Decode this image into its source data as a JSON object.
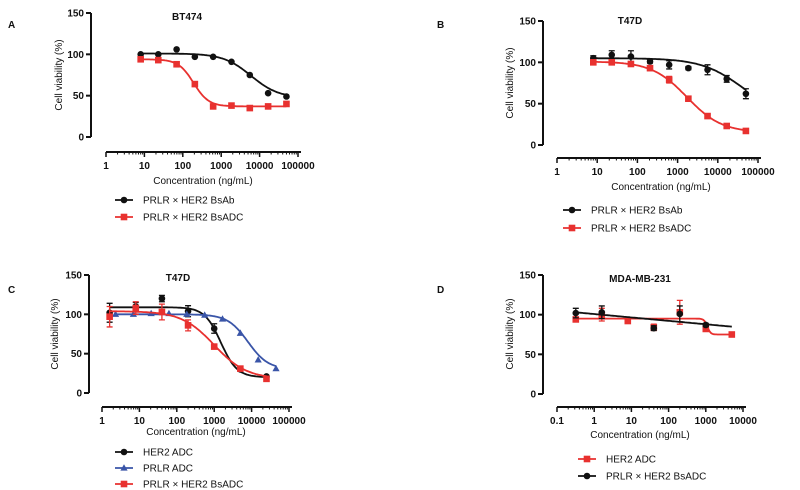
{
  "chart_data": [
    {
      "type": "scatter",
      "panel_label": "A",
      "title": "BT474",
      "xlabel": "Concentration (ng/mL)",
      "ylabel": "Cell viability (%)",
      "xscale": "log",
      "xlim": [
        1,
        100000
      ],
      "ylim": [
        0,
        150
      ],
      "xticks": [
        "1",
        "10",
        "100",
        "1000",
        "10000",
        "100000"
      ],
      "yticks": [
        "0",
        "50",
        "100",
        "150"
      ],
      "grid": false,
      "legend_position": "bottom",
      "series": [
        {
          "name": "PRLR × HER2 BsAb",
          "color": "#111111",
          "marker": "circle",
          "x": [
            8,
            23,
            69,
            206,
            617,
            1852,
            5556,
            16667,
            50000
          ],
          "y": [
            100,
            100,
            106,
            97,
            97,
            91,
            75,
            53,
            49
          ],
          "fit": {
            "top": 101,
            "bottom": 47,
            "ec50": 6000,
            "hill": 1.2
          }
        },
        {
          "name": "PRLR × HER2 BsADC",
          "color": "#e8312f",
          "marker": "square",
          "x": [
            8,
            23,
            69,
            206,
            617,
            1852,
            5556,
            16667,
            50000
          ],
          "y": [
            94,
            93,
            88,
            64,
            37,
            38,
            35,
            37,
            40
          ],
          "fit": {
            "top": 94,
            "bottom": 37,
            "ec50": 190,
            "hill": 2.2
          }
        }
      ]
    },
    {
      "type": "scatter",
      "panel_label": "B",
      "title": "T47D",
      "xlabel": "Concentration (ng/mL)",
      "ylabel": "Cell viability (%)",
      "xscale": "log",
      "xlim": [
        1,
        100000
      ],
      "ylim": [
        0,
        150
      ],
      "xticks": [
        "1",
        "10",
        "100",
        "1000",
        "10000",
        "100000"
      ],
      "yticks": [
        "0",
        "50",
        "100",
        "150"
      ],
      "grid": false,
      "legend_position": "bottom",
      "series": [
        {
          "name": "PRLR × HER2 BsAb",
          "color": "#111111",
          "marker": "circle",
          "x": [
            8,
            23,
            69,
            206,
            617,
            1852,
            5556,
            16667,
            50000
          ],
          "y": [
            105,
            109,
            107,
            101,
            97,
            93,
            91,
            80,
            62
          ],
          "err": [
            3,
            5,
            7,
            2,
            5,
            2,
            6,
            4,
            6
          ],
          "fit": {
            "top": 105,
            "bottom": 35,
            "ec50": 40000,
            "hill": 0.85
          }
        },
        {
          "name": "PRLR × HER2 BsADC",
          "color": "#e8312f",
          "marker": "square",
          "x": [
            8,
            23,
            69,
            206,
            617,
            1852,
            5556,
            16667,
            50000
          ],
          "y": [
            100,
            100,
            98,
            93,
            79,
            56,
            35,
            23,
            17
          ],
          "err": [
            2,
            2,
            2,
            3,
            4,
            2,
            2,
            1,
            1
          ],
          "fit": {
            "top": 101,
            "bottom": 15,
            "ec50": 1700,
            "hill": 1.0
          }
        }
      ]
    },
    {
      "type": "scatter",
      "panel_label": "C",
      "title": "T47D",
      "xlabel": "Concentration (ng/mL)",
      "ylabel": "Cell viability (%)",
      "xscale": "log",
      "xlim": [
        1,
        100000
      ],
      "ylim": [
        0,
        150
      ],
      "xticks": [
        "1",
        "10",
        "100",
        "1000",
        "10000",
        "100000"
      ],
      "yticks": [
        "0",
        "50",
        "100",
        "150"
      ],
      "grid": false,
      "legend_position": "bottom",
      "series": [
        {
          "name": "HER2 ADC",
          "color": "#111111",
          "marker": "circle",
          "x": [
            1.6,
            8,
            40,
            200,
            1000,
            5000,
            25000
          ],
          "y": [
            102,
            110,
            120,
            104,
            82,
            30,
            21
          ],
          "err": [
            12,
            5,
            4,
            7,
            6,
            2,
            1
          ],
          "fit": {
            "top": 109,
            "bottom": 20,
            "ec50": 1500,
            "hill": 2.0
          }
        },
        {
          "name": "PRLR ADC",
          "color": "#3a55a8",
          "marker": "triangle",
          "x": [
            2.3,
            6.9,
            20.6,
            61.7,
            185,
            556,
            1667,
            5000,
            15000,
            45000
          ],
          "y": [
            100,
            100,
            101,
            101,
            100,
            99,
            94,
            76,
            42,
            31
          ],
          "fit": {
            "top": 100,
            "bottom": 30,
            "ec50": 8000,
            "hill": 1.6
          }
        },
        {
          "name": "PRLR × HER2 BsADC",
          "color": "#e8312f",
          "marker": "square",
          "x": [
            1.6,
            8,
            40,
            200,
            1000,
            5000,
            25000
          ],
          "y": [
            97,
            108,
            103,
            86,
            59,
            31,
            18
          ],
          "err": [
            13,
            8,
            10,
            7,
            3,
            2,
            1
          ],
          "fit": {
            "top": 104,
            "bottom": 18,
            "ec50": 1000,
            "hill": 1.0
          }
        }
      ]
    },
    {
      "type": "scatter",
      "panel_label": "D",
      "title": "MDA-MB-231",
      "xlabel": "Concentration (ng/mL)",
      "ylabel": "Cell viability (%)",
      "xscale": "log",
      "xlim": [
        0.1,
        10000
      ],
      "ylim": [
        0,
        150
      ],
      "xticks": [
        "0.1",
        "1",
        "10",
        "100",
        "1000",
        "10000"
      ],
      "yticks": [
        "0",
        "50",
        "100",
        "150"
      ],
      "grid": false,
      "legend_position": "bottom",
      "series": [
        {
          "name": "HER2 ADC",
          "color": "#e8312f",
          "marker": "square",
          "x": [
            0.32,
            1.6,
            8,
            40,
            200,
            1000,
            5000
          ],
          "y": [
            94,
            100,
            92,
            84,
            103,
            82,
            75
          ],
          "err": [
            2,
            8,
            1,
            4,
            15,
            2,
            1
          ],
          "fit": {
            "top": 95,
            "bottom": 75,
            "ec50": 1100,
            "hill": 10
          }
        },
        {
          "name": "PRLR × HER2 BsADC",
          "color": "#111111",
          "marker": "circle",
          "x": [
            0.32,
            1.6,
            40,
            200,
            1000
          ],
          "y": [
            102,
            103,
            83,
            101,
            87
          ],
          "err": [
            6,
            8,
            3,
            10,
            2
          ],
          "fit": {
            "linear_log": true,
            "y_at_1": 100.8,
            "slope_per_decade": -4.3,
            "x_end": 5000
          }
        }
      ]
    }
  ]
}
